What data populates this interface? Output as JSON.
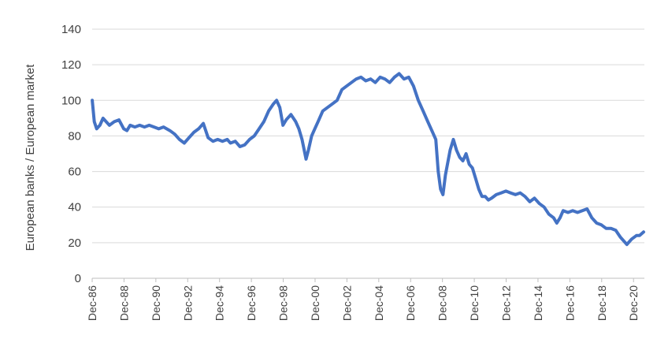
{
  "chart_data": {
    "type": "line",
    "title": "",
    "xlabel": "",
    "ylabel": "European banks / European market",
    "ylim": [
      0,
      140
    ],
    "yticks": [
      0,
      20,
      40,
      60,
      80,
      100,
      120,
      140
    ],
    "xlim": [
      1986.917,
      2021.6
    ],
    "xticks": [
      "Dec-86",
      "Dec-88",
      "Dec-90",
      "Dec-92",
      "Dec-94",
      "Dec-96",
      "Dec-98",
      "Dec-00",
      "Dec-02",
      "Dec-04",
      "Dec-06",
      "Dec-08",
      "Dec-10",
      "Dec-12",
      "Dec-14",
      "Dec-16",
      "Dec-18",
      "Dec-20"
    ],
    "grid": "horizontal",
    "legend": "none",
    "line_color": "#4472C4",
    "series": [
      {
        "x": [
          1986.92,
          1987.05,
          1987.2,
          1987.4,
          1987.6,
          1987.8,
          1988.0,
          1988.3,
          1988.6,
          1988.9,
          1989.1,
          1989.3,
          1989.6,
          1989.9,
          1990.2,
          1990.5,
          1990.8,
          1991.1,
          1991.4,
          1991.8,
          1992.1,
          1992.4,
          1992.7,
          1993.0,
          1993.3,
          1993.6,
          1993.9,
          1994.2,
          1994.5,
          1994.8,
          1995.1,
          1995.4,
          1995.6,
          1995.9,
          1996.2,
          1996.5,
          1996.8,
          1997.1,
          1997.4,
          1997.7,
          1998.0,
          1998.3,
          1998.5,
          1998.7,
          1998.9,
          1999.1,
          1999.4,
          1999.7,
          1999.9,
          2000.1,
          2000.35,
          2000.5,
          2000.7,
          2000.9,
          2001.1,
          2001.4,
          2001.7,
          2002.0,
          2002.3,
          2002.6,
          2002.9,
          2003.2,
          2003.5,
          2003.8,
          2004.1,
          2004.4,
          2004.7,
          2005.0,
          2005.3,
          2005.6,
          2005.9,
          2006.2,
          2006.5,
          2006.8,
          2007.1,
          2007.4,
          2007.7,
          2008.0,
          2008.3,
          2008.5,
          2008.65,
          2008.8,
          2008.95,
          2009.1,
          2009.25,
          2009.4,
          2009.6,
          2009.8,
          2010.0,
          2010.2,
          2010.4,
          2010.6,
          2010.8,
          2011.0,
          2011.2,
          2011.4,
          2011.6,
          2011.8,
          2012.0,
          2012.3,
          2012.6,
          2012.9,
          2013.2,
          2013.5,
          2013.8,
          2014.1,
          2014.4,
          2014.7,
          2015.0,
          2015.3,
          2015.6,
          2015.9,
          2016.1,
          2016.3,
          2016.5,
          2016.8,
          2017.1,
          2017.4,
          2017.7,
          2018.0,
          2018.3,
          2018.6,
          2018.9,
          2019.2,
          2019.5,
          2019.8,
          2020.1,
          2020.3,
          2020.5,
          2020.8,
          2021.1,
          2021.3,
          2021.55
        ],
        "values": [
          100,
          88,
          84,
          86,
          90,
          88,
          86,
          88,
          89,
          84,
          83,
          86,
          85,
          86,
          85,
          86,
          85,
          84,
          85,
          83,
          81,
          78,
          76,
          79,
          82,
          84,
          87,
          79,
          77,
          78,
          77,
          78,
          76,
          77,
          74,
          75,
          78,
          80,
          84,
          88,
          94,
          98,
          100,
          96,
          86,
          89,
          92,
          88,
          84,
          78,
          67,
          72,
          80,
          84,
          88,
          94,
          96,
          98,
          100,
          106,
          108,
          110,
          112,
          113,
          111,
          112,
          110,
          113,
          112,
          110,
          113,
          115,
          112,
          113,
          108,
          100,
          94,
          88,
          82,
          78,
          60,
          50,
          47,
          58,
          65,
          72,
          78,
          72,
          68,
          66,
          70,
          64,
          62,
          56,
          50,
          46,
          46,
          44,
          45,
          47,
          48,
          49,
          48,
          47,
          48,
          46,
          43,
          45,
          42,
          40,
          36,
          34,
          31,
          34,
          38,
          37,
          38,
          37,
          38,
          39,
          34,
          31,
          30,
          28,
          28,
          27,
          23,
          21,
          19,
          22,
          24,
          24,
          26
        ]
      }
    ]
  }
}
